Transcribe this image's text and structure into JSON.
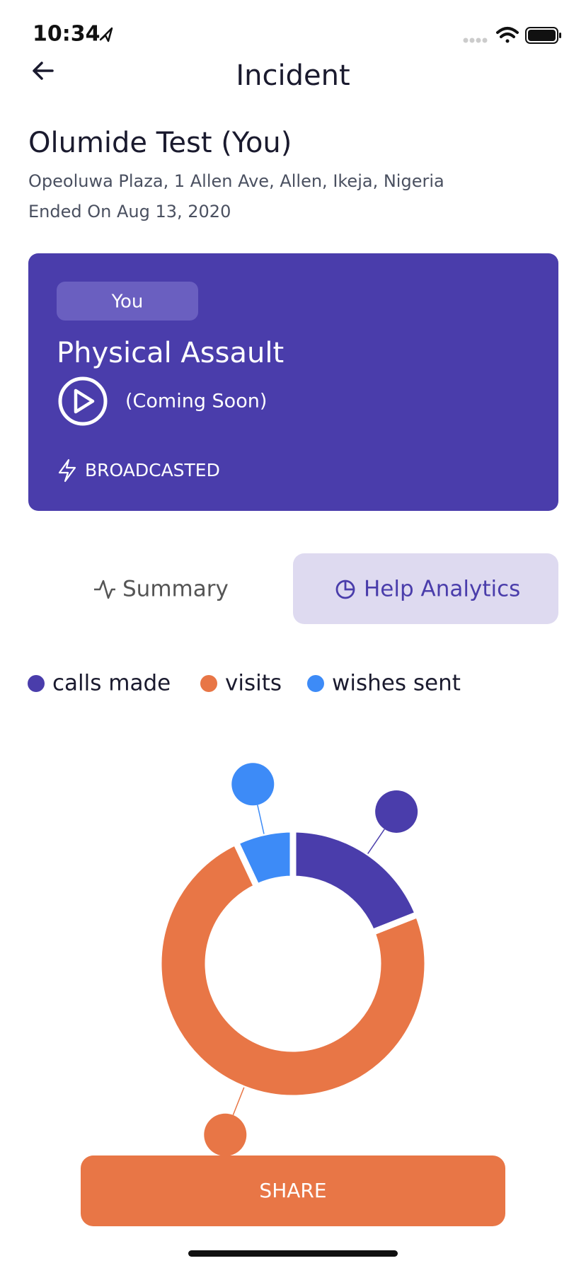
{
  "status_bar": {
    "time": "10:34"
  },
  "header": {
    "title": "Incident"
  },
  "incident": {
    "name": "Olumide Test (You)",
    "address": "Opeoluwa Plaza, 1 Allen Ave, Allen, Ikeja, Nigeria",
    "ended": "Ended On Aug 13, 2020"
  },
  "card": {
    "badge": "You",
    "type": "Physical Assault",
    "media_note": "(Coming Soon)",
    "status": "BROADCASTED"
  },
  "tabs": [
    "Summary",
    "Help Analytics"
  ],
  "chart_data": {
    "type": "donut",
    "categories": [
      "calls made",
      "visits",
      "wishes sent"
    ],
    "values": [
      19,
      74,
      7
    ],
    "colors": [
      "#4a3dab",
      "#e87646",
      "#3d8bf7"
    ]
  },
  "share_button": {
    "label": "SHARE"
  }
}
